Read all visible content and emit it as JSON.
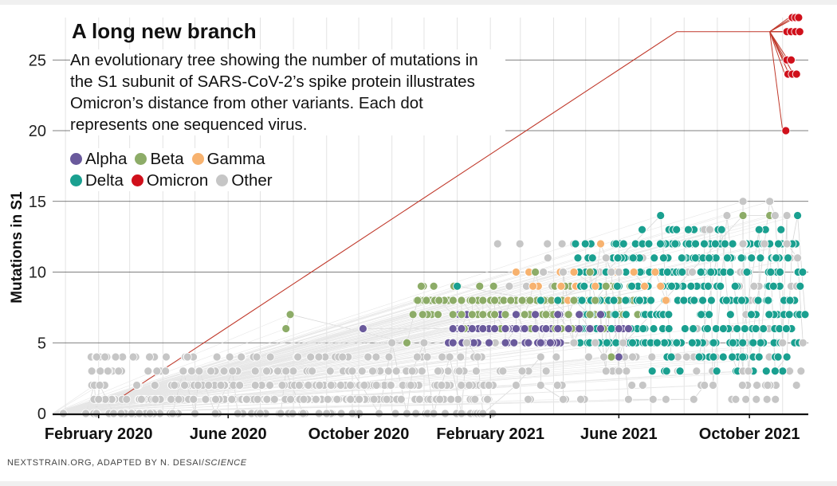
{
  "header": {
    "title": "A long new branch",
    "subtitle": "An evolutionary tree showing the number of mutations in the S1 subunit of SARS-CoV-2’s spike protein illustrates Omicron’s distance from other variants. Each dot represents one sequenced virus."
  },
  "legend": [
    {
      "name": "Alpha",
      "color": "#6a5a9c"
    },
    {
      "name": "Beta",
      "color": "#8dac68"
    },
    {
      "name": "Gamma",
      "color": "#f7b26f"
    },
    {
      "name": "Delta",
      "color": "#1aa090"
    },
    {
      "name": "Omicron",
      "color": "#d0101b"
    },
    {
      "name": "Other",
      "color": "#c6c6c6"
    }
  ],
  "credit": {
    "source": "NEXTSTRAIN.ORG, ADAPTED BY N. DESAI/",
    "publication": "SCIENCE"
  },
  "chart_data": {
    "type": "scatter",
    "ylabel": "Mutations in S1",
    "xlabel": "",
    "ylim": [
      0,
      28
    ],
    "yticks": [
      0,
      5,
      10,
      15,
      20,
      25
    ],
    "xlim": [
      "2019-12-20",
      "2021-11-25"
    ],
    "xticks": [
      {
        "date": "2020-02-01",
        "label": "February 2020"
      },
      {
        "date": "2020-06-01",
        "label": "June 2020"
      },
      {
        "date": "2020-10-01",
        "label": "October 2020"
      },
      {
        "date": "2021-02-01",
        "label": "February 2021"
      },
      {
        "date": "2021-06-01",
        "label": "June 2021"
      },
      {
        "date": "2021-10-01",
        "label": "October 2021"
      }
    ],
    "grid": true,
    "legend_position": "top-left",
    "series": [
      {
        "name": "Alpha",
        "color": "#6a5a9c",
        "points": [
          [
            "2020-10-05",
            6
          ],
          [
            "2020-12-28",
            6
          ],
          [
            "2021-01-05",
            6
          ],
          [
            "2021-01-15",
            6
          ],
          [
            "2021-01-25",
            6
          ],
          [
            "2021-02-05",
            6
          ],
          [
            "2021-02-15",
            6
          ],
          [
            "2021-02-25",
            6
          ],
          [
            "2021-03-05",
            6
          ],
          [
            "2021-03-15",
            6
          ],
          [
            "2021-03-25",
            6
          ],
          [
            "2021-04-05",
            6
          ],
          [
            "2021-04-15",
            6
          ],
          [
            "2021-04-25",
            6
          ],
          [
            "2021-05-05",
            6
          ],
          [
            "2021-05-15",
            6
          ],
          [
            "2021-06-01",
            6
          ],
          [
            "2021-06-10",
            6
          ],
          [
            "2021-01-10",
            7
          ],
          [
            "2021-02-05",
            7
          ],
          [
            "2021-02-25",
            7
          ],
          [
            "2021-03-15",
            7
          ],
          [
            "2021-04-05",
            7
          ],
          [
            "2021-04-25",
            7
          ],
          [
            "2021-05-15",
            7
          ],
          [
            "2021-02-15",
            5
          ],
          [
            "2021-03-20",
            5
          ],
          [
            "2021-04-20",
            5
          ],
          [
            "2021-05-18",
            4
          ],
          [
            "2021-06-01",
            4
          ]
        ]
      },
      {
        "name": "Beta",
        "color": "#8dac68",
        "points": [
          [
            "2020-07-25",
            6
          ],
          [
            "2020-07-29",
            7
          ],
          [
            "2020-11-15",
            5
          ],
          [
            "2020-11-25",
            8
          ],
          [
            "2020-12-15",
            8
          ],
          [
            "2020-12-28",
            7
          ],
          [
            "2021-01-05",
            7
          ],
          [
            "2021-01-15",
            7
          ],
          [
            "2021-01-25",
            7
          ],
          [
            "2021-02-05",
            7
          ],
          [
            "2021-02-15",
            7
          ],
          [
            "2021-03-05",
            7
          ],
          [
            "2021-03-25",
            7
          ],
          [
            "2021-04-15",
            7
          ],
          [
            "2021-05-05",
            7
          ],
          [
            "2021-01-05",
            8
          ],
          [
            "2021-01-15",
            8
          ],
          [
            "2021-01-25",
            8
          ],
          [
            "2021-02-05",
            8
          ],
          [
            "2021-02-20",
            8
          ],
          [
            "2021-03-10",
            8
          ],
          [
            "2021-03-30",
            8
          ],
          [
            "2021-04-20",
            8
          ],
          [
            "2021-05-10",
            8
          ],
          [
            "2021-03-15",
            10
          ],
          [
            "2021-05-05",
            10
          ],
          [
            "2021-05-25",
            4
          ],
          [
            "2021-09-25",
            14
          ],
          [
            "2021-10-20",
            14
          ],
          [
            "2021-05-20",
            9
          ]
        ]
      },
      {
        "name": "Gamma",
        "color": "#f7b26f",
        "points": [
          [
            "2021-02-25",
            10
          ],
          [
            "2021-05-15",
            12
          ],
          [
            "2021-05-10",
            9
          ],
          [
            "2021-04-20",
            10
          ],
          [
            "2021-06-15",
            10
          ],
          [
            "2021-07-05",
            10
          ],
          [
            "2021-06-25",
            9
          ],
          [
            "2021-07-10",
            9
          ],
          [
            "2021-05-25",
            10
          ],
          [
            "2021-07-15",
            8
          ]
        ]
      },
      {
        "name": "Delta",
        "color": "#1aa090",
        "points": [
          [
            "2021-01-01",
            9
          ],
          [
            "2021-07-10",
            14
          ],
          [
            "2021-11-15",
            14
          ],
          [
            "2021-10-20",
            12
          ],
          [
            "2021-11-10",
            12
          ],
          [
            "2021-09-05",
            13
          ],
          [
            "2021-10-10",
            13
          ],
          [
            "2021-09-20",
            3
          ],
          [
            "2021-10-25",
            3
          ],
          [
            "2021-09-15",
            4
          ],
          [
            "2021-10-10",
            4
          ],
          [
            "2021-11-05",
            4
          ],
          [
            "2021-07-20",
            4
          ],
          [
            "2021-08-15",
            4
          ],
          [
            "2021-11-22",
            7
          ],
          [
            "2021-04-05",
            8
          ],
          [
            "2021-03-20",
            8
          ],
          [
            "2021-05-20",
            10
          ]
        ]
      },
      {
        "name": "Omicron",
        "color": "#d0101b",
        "points": [
          [
            "2021-11-10",
            28
          ],
          [
            "2021-11-13",
            28
          ],
          [
            "2021-11-16",
            28
          ],
          [
            "2021-11-05",
            27
          ],
          [
            "2021-11-09",
            27
          ],
          [
            "2021-11-13",
            27
          ],
          [
            "2021-11-17",
            27
          ],
          [
            "2021-11-05",
            25
          ],
          [
            "2021-11-09",
            25
          ],
          [
            "2021-11-06",
            24
          ],
          [
            "2021-11-10",
            24
          ],
          [
            "2021-11-14",
            24
          ],
          [
            "2021-11-04",
            20
          ]
        ]
      },
      {
        "name": "Other",
        "color": "#c6c6c6",
        "points": [
          [
            "2019-12-30",
            0
          ],
          [
            "2020-01-20",
            0
          ],
          [
            "2020-01-30",
            0
          ],
          [
            "2020-02-15",
            0
          ],
          [
            "2020-02-22",
            0
          ],
          [
            "2020-03-10",
            0
          ],
          [
            "2020-03-20",
            0
          ],
          [
            "2020-04-10",
            0
          ],
          [
            "2020-05-01",
            0
          ],
          [
            "2020-05-20",
            0
          ],
          [
            "2020-06-10",
            0
          ],
          [
            "2020-07-01",
            0
          ],
          [
            "2020-07-20",
            0
          ],
          [
            "2020-08-10",
            0
          ],
          [
            "2020-09-01",
            0
          ],
          [
            "2020-09-25",
            0
          ],
          [
            "2020-10-20",
            0
          ],
          [
            "2020-11-15",
            0
          ],
          [
            "2020-12-10",
            0
          ],
          [
            "2021-01-05",
            0
          ],
          [
            "2021-01-25",
            0
          ],
          [
            "2020-01-28",
            2
          ],
          [
            "2020-02-02",
            2
          ],
          [
            "2020-04-20",
            3
          ],
          [
            "2020-05-05",
            3
          ],
          [
            "2020-06-05",
            3
          ],
          [
            "2020-07-25",
            3
          ],
          [
            "2020-09-25",
            3
          ],
          [
            "2020-11-20",
            3
          ],
          [
            "2020-12-25",
            4
          ],
          [
            "2021-01-20",
            4
          ],
          [
            "2021-03-20",
            4
          ],
          [
            "2021-05-18",
            4
          ],
          [
            "2021-06-01",
            3
          ],
          [
            "2021-05-20",
            3
          ],
          [
            "2021-08-28",
            2
          ],
          [
            "2021-09-25",
            3
          ],
          [
            "2021-09-30",
            3
          ],
          [
            "2021-11-01",
            5
          ],
          [
            "2021-11-20",
            5
          ],
          [
            "2021-02-25",
            2
          ],
          [
            "2021-03-20",
            2
          ],
          [
            "2021-04-10",
            1
          ],
          [
            "2021-06-10",
            1
          ],
          [
            "2021-07-15",
            1
          ],
          [
            "2021-08-10",
            1
          ],
          [
            "2021-08-20",
            2
          ],
          [
            "2020-11-01",
            5
          ],
          [
            "2020-12-01",
            5
          ],
          [
            "2021-01-10",
            5
          ],
          [
            "2021-04-20",
            5
          ],
          [
            "2021-05-10",
            5
          ],
          [
            "2021-06-05",
            5
          ],
          [
            "2021-08-20",
            13
          ],
          [
            "2021-08-25",
            13
          ],
          [
            "2021-09-25",
            15
          ],
          [
            "2021-10-20",
            15
          ],
          [
            "2021-09-10",
            14
          ],
          [
            "2021-10-25",
            14
          ],
          [
            "2021-11-05",
            14
          ],
          [
            "2021-04-10",
            10
          ],
          [
            "2021-05-20",
            11
          ],
          [
            "2021-05-25",
            10
          ],
          [
            "2021-06-01",
            10
          ],
          [
            "2021-11-15",
            11
          ],
          [
            "2021-11-05",
            12
          ],
          [
            "2021-11-15",
            11
          ],
          [
            "2021-10-15",
            12
          ],
          [
            "2021-09-25",
            12
          ]
        ]
      }
    ]
  }
}
